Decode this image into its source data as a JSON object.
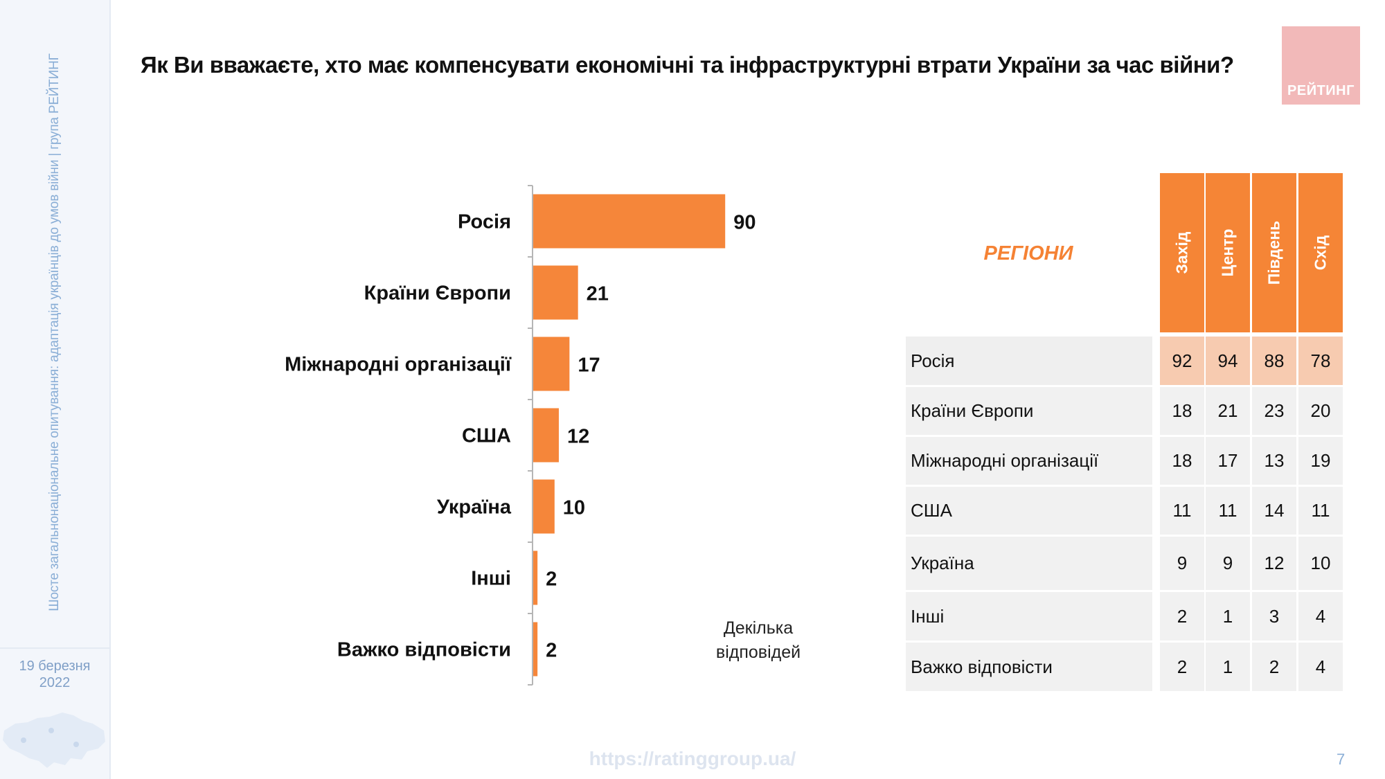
{
  "sidebar": {
    "vertical_text": "Шосте загальнонаціональне опитування: адаптація українців до умов війни | група РЕЙТИНГ",
    "date_line1": "19 березня",
    "date_line2": "2022"
  },
  "title": "Як Ви вважаєте, хто має компенсувати економічні та інфраструктурні втрати України за час війни?",
  "logo_text": "РЕЙТИНГ",
  "note_line1": "Декілька",
  "note_line2": "відповідей",
  "footer": {
    "url": "https://ratinggroup.ua/",
    "page_number": "7"
  },
  "colors": {
    "bar": "#f5863a",
    "accent": "#f58234",
    "highlight": "#f7cbb0"
  },
  "chart_data": [
    {
      "type": "bar",
      "orientation": "horizontal",
      "categories": [
        "Росія",
        "Країни Європи",
        "Міжнародні організації",
        "США",
        "Україна",
        "Інші",
        "Важко відповісти"
      ],
      "values": [
        90,
        21,
        17,
        12,
        10,
        2,
        2
      ],
      "xlim": [
        0,
        100
      ]
    },
    {
      "type": "table",
      "header_label": "РЕГІОНИ",
      "columns": [
        "Захід",
        "Центр",
        "Південь",
        "Схід"
      ],
      "rows": [
        {
          "label": "Росія",
          "values": [
            92,
            94,
            88,
            78
          ]
        },
        {
          "label": "Країни Європи",
          "values": [
            18,
            21,
            23,
            20
          ]
        },
        {
          "label": "Міжнародні організації",
          "values": [
            18,
            17,
            13,
            19
          ]
        },
        {
          "label": "США",
          "values": [
            11,
            11,
            14,
            11
          ]
        },
        {
          "label": "Україна",
          "values": [
            9,
            9,
            12,
            10
          ]
        },
        {
          "label": "Інші",
          "values": [
            2,
            1,
            3,
            4
          ]
        },
        {
          "label": "Важко відповісти",
          "values": [
            2,
            1,
            2,
            4
          ]
        }
      ]
    }
  ]
}
